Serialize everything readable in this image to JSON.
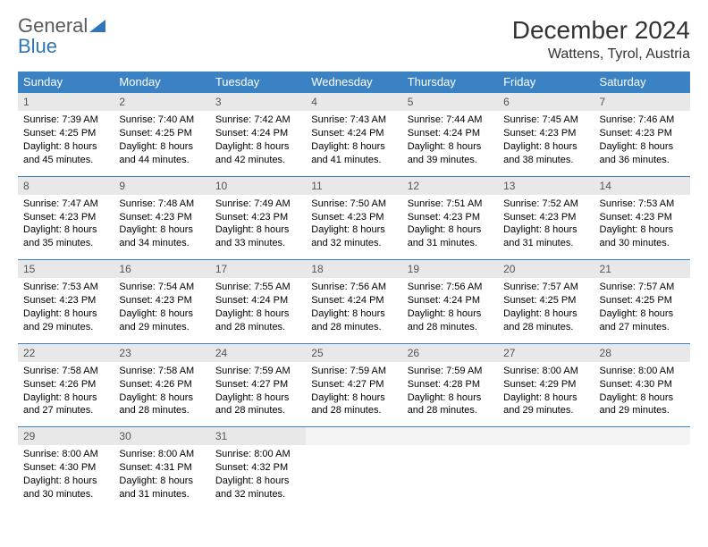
{
  "logo": {
    "general": "General",
    "blue": "Blue"
  },
  "title": "December 2024",
  "location": "Wattens, Tyrol, Austria",
  "colors": {
    "header_bg": "#3b82c4",
    "header_text": "#ffffff",
    "daynum_bg": "#e8e8e8",
    "border": "#3b82c4",
    "logo_general": "#5a5a5a",
    "logo_blue": "#2f76b8"
  },
  "weekdays": [
    "Sunday",
    "Monday",
    "Tuesday",
    "Wednesday",
    "Thursday",
    "Friday",
    "Saturday"
  ],
  "weeks": [
    [
      {
        "n": "1",
        "sunrise": "Sunrise: 7:39 AM",
        "sunset": "Sunset: 4:25 PM",
        "day": "Daylight: 8 hours and 45 minutes."
      },
      {
        "n": "2",
        "sunrise": "Sunrise: 7:40 AM",
        "sunset": "Sunset: 4:25 PM",
        "day": "Daylight: 8 hours and 44 minutes."
      },
      {
        "n": "3",
        "sunrise": "Sunrise: 7:42 AM",
        "sunset": "Sunset: 4:24 PM",
        "day": "Daylight: 8 hours and 42 minutes."
      },
      {
        "n": "4",
        "sunrise": "Sunrise: 7:43 AM",
        "sunset": "Sunset: 4:24 PM",
        "day": "Daylight: 8 hours and 41 minutes."
      },
      {
        "n": "5",
        "sunrise": "Sunrise: 7:44 AM",
        "sunset": "Sunset: 4:24 PM",
        "day": "Daylight: 8 hours and 39 minutes."
      },
      {
        "n": "6",
        "sunrise": "Sunrise: 7:45 AM",
        "sunset": "Sunset: 4:23 PM",
        "day": "Daylight: 8 hours and 38 minutes."
      },
      {
        "n": "7",
        "sunrise": "Sunrise: 7:46 AM",
        "sunset": "Sunset: 4:23 PM",
        "day": "Daylight: 8 hours and 36 minutes."
      }
    ],
    [
      {
        "n": "8",
        "sunrise": "Sunrise: 7:47 AM",
        "sunset": "Sunset: 4:23 PM",
        "day": "Daylight: 8 hours and 35 minutes."
      },
      {
        "n": "9",
        "sunrise": "Sunrise: 7:48 AM",
        "sunset": "Sunset: 4:23 PM",
        "day": "Daylight: 8 hours and 34 minutes."
      },
      {
        "n": "10",
        "sunrise": "Sunrise: 7:49 AM",
        "sunset": "Sunset: 4:23 PM",
        "day": "Daylight: 8 hours and 33 minutes."
      },
      {
        "n": "11",
        "sunrise": "Sunrise: 7:50 AM",
        "sunset": "Sunset: 4:23 PM",
        "day": "Daylight: 8 hours and 32 minutes."
      },
      {
        "n": "12",
        "sunrise": "Sunrise: 7:51 AM",
        "sunset": "Sunset: 4:23 PM",
        "day": "Daylight: 8 hours and 31 minutes."
      },
      {
        "n": "13",
        "sunrise": "Sunrise: 7:52 AM",
        "sunset": "Sunset: 4:23 PM",
        "day": "Daylight: 8 hours and 31 minutes."
      },
      {
        "n": "14",
        "sunrise": "Sunrise: 7:53 AM",
        "sunset": "Sunset: 4:23 PM",
        "day": "Daylight: 8 hours and 30 minutes."
      }
    ],
    [
      {
        "n": "15",
        "sunrise": "Sunrise: 7:53 AM",
        "sunset": "Sunset: 4:23 PM",
        "day": "Daylight: 8 hours and 29 minutes."
      },
      {
        "n": "16",
        "sunrise": "Sunrise: 7:54 AM",
        "sunset": "Sunset: 4:23 PM",
        "day": "Daylight: 8 hours and 29 minutes."
      },
      {
        "n": "17",
        "sunrise": "Sunrise: 7:55 AM",
        "sunset": "Sunset: 4:24 PM",
        "day": "Daylight: 8 hours and 28 minutes."
      },
      {
        "n": "18",
        "sunrise": "Sunrise: 7:56 AM",
        "sunset": "Sunset: 4:24 PM",
        "day": "Daylight: 8 hours and 28 minutes."
      },
      {
        "n": "19",
        "sunrise": "Sunrise: 7:56 AM",
        "sunset": "Sunset: 4:24 PM",
        "day": "Daylight: 8 hours and 28 minutes."
      },
      {
        "n": "20",
        "sunrise": "Sunrise: 7:57 AM",
        "sunset": "Sunset: 4:25 PM",
        "day": "Daylight: 8 hours and 28 minutes."
      },
      {
        "n": "21",
        "sunrise": "Sunrise: 7:57 AM",
        "sunset": "Sunset: 4:25 PM",
        "day": "Daylight: 8 hours and 27 minutes."
      }
    ],
    [
      {
        "n": "22",
        "sunrise": "Sunrise: 7:58 AM",
        "sunset": "Sunset: 4:26 PM",
        "day": "Daylight: 8 hours and 27 minutes."
      },
      {
        "n": "23",
        "sunrise": "Sunrise: 7:58 AM",
        "sunset": "Sunset: 4:26 PM",
        "day": "Daylight: 8 hours and 28 minutes."
      },
      {
        "n": "24",
        "sunrise": "Sunrise: 7:59 AM",
        "sunset": "Sunset: 4:27 PM",
        "day": "Daylight: 8 hours and 28 minutes."
      },
      {
        "n": "25",
        "sunrise": "Sunrise: 7:59 AM",
        "sunset": "Sunset: 4:27 PM",
        "day": "Daylight: 8 hours and 28 minutes."
      },
      {
        "n": "26",
        "sunrise": "Sunrise: 7:59 AM",
        "sunset": "Sunset: 4:28 PM",
        "day": "Daylight: 8 hours and 28 minutes."
      },
      {
        "n": "27",
        "sunrise": "Sunrise: 8:00 AM",
        "sunset": "Sunset: 4:29 PM",
        "day": "Daylight: 8 hours and 29 minutes."
      },
      {
        "n": "28",
        "sunrise": "Sunrise: 8:00 AM",
        "sunset": "Sunset: 4:30 PM",
        "day": "Daylight: 8 hours and 29 minutes."
      }
    ],
    [
      {
        "n": "29",
        "sunrise": "Sunrise: 8:00 AM",
        "sunset": "Sunset: 4:30 PM",
        "day": "Daylight: 8 hours and 30 minutes."
      },
      {
        "n": "30",
        "sunrise": "Sunrise: 8:00 AM",
        "sunset": "Sunset: 4:31 PM",
        "day": "Daylight: 8 hours and 31 minutes."
      },
      {
        "n": "31",
        "sunrise": "Sunrise: 8:00 AM",
        "sunset": "Sunset: 4:32 PM",
        "day": "Daylight: 8 hours and 32 minutes."
      },
      null,
      null,
      null,
      null
    ]
  ]
}
